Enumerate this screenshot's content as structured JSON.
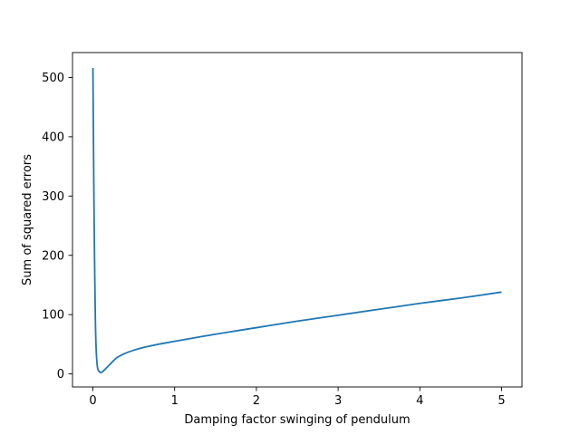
{
  "chart_data": {
    "type": "line",
    "title": "",
    "xlabel": "Damping factor swinging of pendulum",
    "ylabel": "Sum of squared errors",
    "xlim": [
      -0.25,
      5.25
    ],
    "ylim": [
      -22,
      542
    ],
    "xticks": [
      0,
      1,
      2,
      3,
      4,
      5
    ],
    "yticks": [
      0,
      100,
      200,
      300,
      400,
      500
    ],
    "grid": false,
    "legend": "none",
    "series": [
      {
        "color": "#1f77b4",
        "x": [
          0,
          0.005,
          0.01,
          0.02,
          0.03,
          0.04,
          0.05,
          0.06,
          0.08,
          0.1,
          0.12,
          0.15,
          0.2,
          0.25,
          0.3,
          0.4,
          0.5,
          0.6,
          0.8,
          1.0,
          1.5,
          2.0,
          2.5,
          3.0,
          3.5,
          4.0,
          4.5,
          5.0
        ],
        "y": [
          516,
          420,
          330,
          190,
          90,
          40,
          18,
          8,
          3.5,
          2.5,
          4,
          8,
          15,
          22,
          28,
          35,
          40,
          44,
          50,
          55,
          67,
          78,
          89,
          99,
          109,
          119,
          128,
          138
        ]
      }
    ]
  }
}
